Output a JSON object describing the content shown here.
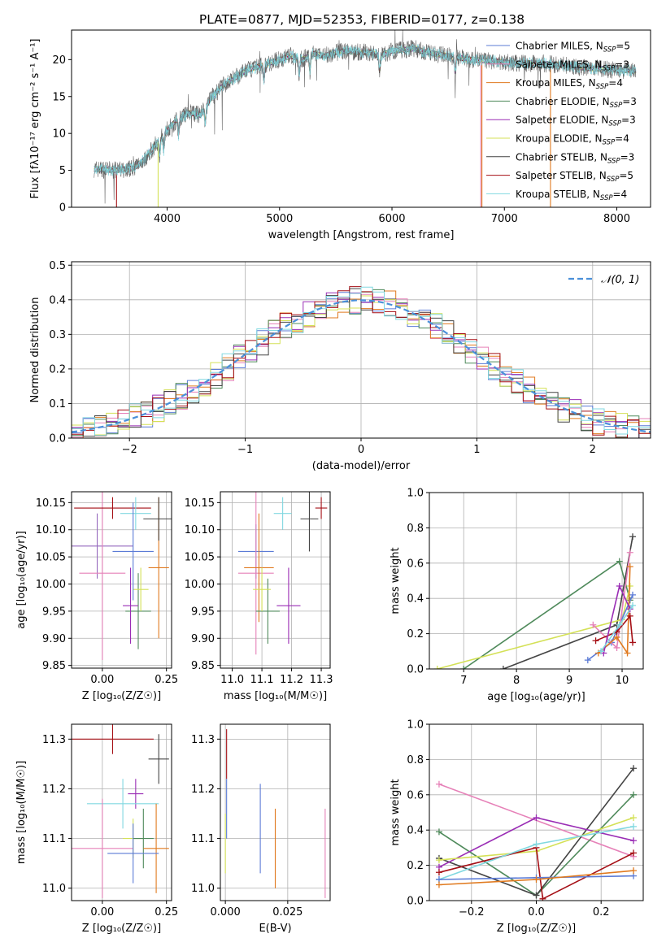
{
  "title": "PLATE=0877, MJD=52353, FIBERID=0177, z=0.138",
  "colors": [
    "#2ca02c",
    "#9467bd",
    "#bcbd22",
    "#4f8a5b",
    "#9a2db5",
    "#d4e157",
    "#444444",
    "#a50f15",
    "#80d8e0",
    "#5b7bd6",
    "#e07a1f",
    "#e681b8"
  ],
  "legend_entries": [
    {
      "label": "Chabrier MILES, N_SSP=5",
      "color": "#5b7bd6"
    },
    {
      "label": "Salpeter MILES, N_SSP=3",
      "color": "#e681b8"
    },
    {
      "label": "Kroupa MILES, N_SSP=4",
      "color": "#e07a1f"
    },
    {
      "label": "Chabrier ELODIE, N_SSP=3",
      "color": "#4f8a5b"
    },
    {
      "label": "Salpeter ELODIE, N_SSP=3",
      "color": "#9a2db5"
    },
    {
      "label": "Kroupa ELODIE, N_SSP=4",
      "color": "#d4e157"
    },
    {
      "label": "Chabrier STELIB, N_SSP=3",
      "color": "#444444"
    },
    {
      "label": "Salpeter STELIB, N_SSP=5",
      "color": "#a50f15"
    },
    {
      "label": "Kroupa STELIB, N_SSP=4",
      "color": "#80d8e0"
    }
  ],
  "chart_data": [
    {
      "id": "spectrum",
      "type": "line",
      "xlabel": "wavelength [Angstrom, rest frame]",
      "ylabel": "Flux [fλ10⁻¹⁷ erg cm⁻² s⁻¹ A⁻¹]",
      "xlim": [
        3150,
        8300
      ],
      "ylim": [
        0,
        24
      ],
      "xticks": [
        4000,
        5000,
        6000,
        7000,
        8000
      ],
      "yticks": [
        0,
        5,
        10,
        15,
        20
      ],
      "grid": false,
      "legend": "top-right",
      "continuum": [
        [
          3350,
          5.2
        ],
        [
          3550,
          5.0
        ],
        [
          3700,
          5.3
        ],
        [
          3800,
          6.5
        ],
        [
          3900,
          8.5
        ],
        [
          4000,
          10.5
        ],
        [
          4100,
          12.0
        ],
        [
          4200,
          12.8
        ],
        [
          4300,
          12.5
        ],
        [
          4400,
          15.0
        ],
        [
          4500,
          16.5
        ],
        [
          4600,
          17.5
        ],
        [
          4700,
          18.5
        ],
        [
          4800,
          19.0
        ],
        [
          4900,
          19.5
        ],
        [
          5000,
          20.0
        ],
        [
          5100,
          20.5
        ],
        [
          5200,
          20.0
        ],
        [
          5300,
          20.8
        ],
        [
          5400,
          20.5
        ],
        [
          5500,
          21.0
        ],
        [
          5600,
          21.2
        ],
        [
          5700,
          21.0
        ],
        [
          5800,
          21.0
        ],
        [
          5900,
          20.5
        ],
        [
          6000,
          21.2
        ],
        [
          6100,
          21.3
        ],
        [
          6200,
          21.5
        ],
        [
          6300,
          21.0
        ],
        [
          6500,
          20.5
        ],
        [
          6700,
          20.0
        ],
        [
          6900,
          19.8
        ],
        [
          7100,
          19.5
        ],
        [
          7300,
          19.5
        ],
        [
          7500,
          19.3
        ],
        [
          7700,
          18.9
        ],
        [
          8000,
          18.6
        ],
        [
          8170,
          18.5
        ]
      ],
      "model_drop_wavelengths": [
        3550,
        3920,
        6790,
        6800,
        7410
      ],
      "data_noise": 1.2
    },
    {
      "id": "residuals",
      "type": "bar",
      "xlabel": "(data-model)/error",
      "ylabel": "Normed distribution",
      "xlim": [
        -2.5,
        2.5
      ],
      "ylim": [
        0,
        0.51
      ],
      "xticks": [
        -2,
        -1,
        0,
        1,
        2
      ],
      "yticks": [
        0.0,
        0.1,
        0.2,
        0.3,
        0.4,
        0.5
      ],
      "grid": true,
      "legend": "top-right",
      "reference_label": "𝒩(0, 1)",
      "bin_width": 0.1
    },
    {
      "id": "age_vs_Z",
      "type": "scatter",
      "xlabel": "Z [log₁₀(Z/Z☉)]",
      "ylabel": "age  [log₁₀(age/yr)]",
      "xlim": [
        -0.12,
        0.27
      ],
      "ylim": [
        9.845,
        10.17
      ],
      "xticks": [
        0.0,
        0.25
      ],
      "yticks": [
        9.85,
        9.9,
        9.95,
        10.0,
        10.05,
        10.1,
        10.15
      ],
      "grid": true,
      "points": [
        {
          "c": 1,
          "x": -0.02,
          "y": 10.07,
          "xerr": 0.14,
          "yerr": 0.06
        },
        {
          "c": 11,
          "x": 0.0,
          "y": 10.02,
          "xerr": 0.09,
          "yerr": 0.16
        },
        {
          "c": 10,
          "x": 0.22,
          "y": 10.03,
          "xerr": 0.04,
          "yerr": 0.13
        },
        {
          "c": 3,
          "x": 0.14,
          "y": 9.95,
          "xerr": 0.05,
          "yerr": 0.07
        },
        {
          "c": 4,
          "x": 0.11,
          "y": 9.96,
          "xerr": 0.03,
          "yerr": 0.07
        },
        {
          "c": 5,
          "x": 0.15,
          "y": 9.99,
          "xerr": 0.03,
          "yerr": 0.04
        },
        {
          "c": 6,
          "x": 0.22,
          "y": 10.12,
          "xerr": 0.06,
          "yerr": 0.04
        },
        {
          "c": 7,
          "x": 0.04,
          "y": 10.14,
          "xerr": 0.15,
          "yerr": 0.02
        },
        {
          "c": 8,
          "x": 0.13,
          "y": 10.13,
          "xerr": 0.06,
          "yerr": 0.03
        },
        {
          "c": 9,
          "x": 0.12,
          "y": 10.06,
          "xerr": 0.08,
          "yerr": 0.09
        }
      ]
    },
    {
      "id": "age_vs_mass",
      "type": "scatter",
      "xlabel": "mass [log₁₀(M/M☉)]",
      "ylabel": "",
      "xlim": [
        10.96,
        11.33
      ],
      "ylim": [
        9.845,
        10.17
      ],
      "xticks": [
        11.0,
        11.1,
        11.2,
        11.3
      ],
      "yticks": [
        9.85,
        9.9,
        9.95,
        10.0,
        10.05,
        10.1,
        10.15
      ],
      "grid": true,
      "points": [
        {
          "c": 9,
          "x": 11.08,
          "y": 10.06,
          "xerr": 0.06,
          "yerr": 0.05
        },
        {
          "c": 11,
          "x": 11.08,
          "y": 10.02,
          "xerr": 0.06,
          "yerr": 0.15
        },
        {
          "c": 10,
          "x": 11.09,
          "y": 10.03,
          "xerr": 0.05,
          "yerr": 0.1
        },
        {
          "c": 3,
          "x": 11.12,
          "y": 9.95,
          "xerr": 0.04,
          "yerr": 0.06
        },
        {
          "c": 4,
          "x": 11.19,
          "y": 9.96,
          "xerr": 0.04,
          "yerr": 0.07
        },
        {
          "c": 5,
          "x": 11.1,
          "y": 9.99,
          "xerr": 0.03,
          "yerr": 0.04
        },
        {
          "c": 6,
          "x": 11.26,
          "y": 10.12,
          "xerr": 0.03,
          "yerr": 0.06
        },
        {
          "c": 7,
          "x": 11.3,
          "y": 10.14,
          "xerr": 0.02,
          "yerr": 0.02
        },
        {
          "c": 8,
          "x": 11.17,
          "y": 10.13,
          "xerr": 0.03,
          "yerr": 0.03
        }
      ]
    },
    {
      "id": "weight_vs_age",
      "type": "line",
      "xlabel": "age  [log₁₀(age/yr)]",
      "ylabel": "mass weight",
      "xlim": [
        6.35,
        10.4
      ],
      "ylim": [
        0,
        1.0
      ],
      "xticks": [
        7,
        8,
        9,
        10
      ],
      "yticks": [
        0.0,
        0.2,
        0.4,
        0.6,
        0.8,
        1.0
      ],
      "grid": true,
      "series": [
        {
          "c": 3,
          "x": [
            7.0,
            9.95,
            10.15
          ],
          "y": [
            0.0,
            0.61,
            0.39
          ]
        },
        {
          "c": 6,
          "x": 7.75,
          "xs": [
            7.75,
            9.9,
            10.2
          ],
          "ys": [
            0.0,
            0.25,
            0.75
          ]
        },
        {
          "c": 5,
          "x": [
            6.5,
            10.0,
            10.15
          ],
          "y": [
            0.0,
            0.28,
            0.47
          ]
        },
        {
          "c": 9,
          "x": [
            9.35,
            9.8,
            10.2
          ],
          "y": [
            0.05,
            0.15,
            0.42
          ]
        },
        {
          "c": 11,
          "x": [
            9.45,
            9.9,
            10.15
          ],
          "y": [
            0.25,
            0.12,
            0.66
          ]
        },
        {
          "c": 10,
          "x": [
            9.55,
            9.9,
            10.1,
            10.15
          ],
          "y": [
            0.09,
            0.18,
            0.09,
            0.58
          ]
        },
        {
          "c": 7,
          "x": [
            9.5,
            9.9,
            10.15,
            10.2
          ],
          "y": [
            0.16,
            0.21,
            0.3,
            0.15
          ]
        },
        {
          "c": 4,
          "x": [
            9.65,
            9.95,
            10.15
          ],
          "y": [
            0.09,
            0.47,
            0.34
          ]
        },
        {
          "c": 8,
          "x": [
            9.6,
            9.95,
            10.2
          ],
          "y": [
            0.1,
            0.25,
            0.36
          ]
        }
      ]
    },
    {
      "id": "mass_vs_Z",
      "type": "scatter",
      "xlabel": "Z [log₁₀(Z/Z☉)]",
      "ylabel": "mass [log₁₀(M/M☉)]",
      "xlim": [
        -0.12,
        0.27
      ],
      "ylim": [
        10.975,
        11.33
      ],
      "xticks": [
        0.0,
        0.25
      ],
      "yticks": [
        11.0,
        11.1,
        11.2,
        11.3
      ],
      "grid": true,
      "points": [
        {
          "c": 7,
          "x": 0.04,
          "y": 11.3,
          "xerr": 0.16,
          "yerr": 0.03
        },
        {
          "c": 6,
          "x": 0.22,
          "y": 11.26,
          "xerr": 0.04,
          "yerr": 0.05
        },
        {
          "c": 4,
          "x": 0.13,
          "y": 11.19,
          "xerr": 0.03,
          "yerr": 0.03
        },
        {
          "c": 8,
          "x": 0.08,
          "y": 11.17,
          "xerr": 0.14,
          "yerr": 0.05
        },
        {
          "c": 5,
          "x": 0.12,
          "y": 11.1,
          "xerr": 0.04,
          "yerr": 0.04
        },
        {
          "c": 3,
          "x": 0.16,
          "y": 11.1,
          "xerr": 0.04,
          "yerr": 0.06
        },
        {
          "c": 10,
          "x": 0.21,
          "y": 11.08,
          "xerr": 0.05,
          "yerr": 0.09
        },
        {
          "c": 11,
          "x": 0.0,
          "y": 11.08,
          "xerr": 0.12,
          "yerr": 0.1
        },
        {
          "c": 9,
          "x": 0.12,
          "y": 11.07,
          "xerr": 0.1,
          "yerr": 0.06
        }
      ]
    },
    {
      "id": "mass_vs_ebv",
      "type": "scatter",
      "xlabel": "E(B-V)",
      "ylabel": "",
      "xlim": [
        -0.002,
        0.042
      ],
      "ylim": [
        10.975,
        11.33
      ],
      "xticks": [
        0.0,
        0.025
      ],
      "yticks": [
        11.0,
        11.1,
        11.2,
        11.3
      ],
      "grid": true,
      "points": [
        {
          "c": 7,
          "x": 0.0005,
          "y": 11.27,
          "yerr": 0.05
        },
        {
          "c": 9,
          "x": 0.0005,
          "y": 11.16,
          "yerr": 0.06
        },
        {
          "c": 5,
          "x": 0.0,
          "y": 11.09,
          "yerr": 0.06
        },
        {
          "c": 9,
          "x": 0.014,
          "y": 11.12,
          "yerr": 0.09
        },
        {
          "c": 10,
          "x": 0.02,
          "y": 11.08,
          "yerr": 0.08
        },
        {
          "c": 11,
          "x": 0.04,
          "y": 11.07,
          "yerr": 0.09
        }
      ]
    },
    {
      "id": "weight_vs_Z",
      "type": "line",
      "xlabel": "Z [log₁₀(Z/Z☉)]",
      "ylabel": "mass weight",
      "xlim": [
        -0.33,
        0.33
      ],
      "ylim": [
        0,
        1.0
      ],
      "xticks": [
        -0.2,
        0.0,
        0.2
      ],
      "yticks": [
        0.0,
        0.2,
        0.4,
        0.6,
        0.8,
        1.0
      ],
      "grid": true,
      "series": [
        {
          "c": 11,
          "x": [
            -0.3,
            0.3
          ],
          "y": [
            0.66,
            0.25
          ]
        },
        {
          "c": 3,
          "x": [
            -0.3,
            0.0,
            0.3
          ],
          "y": [
            0.39,
            0.03,
            0.6
          ]
        },
        {
          "c": 6,
          "x": [
            -0.3,
            0.0,
            0.3
          ],
          "y": [
            0.24,
            0.03,
            0.75
          ]
        },
        {
          "c": 4,
          "x": [
            -0.3,
            0.0,
            0.3
          ],
          "y": [
            0.19,
            0.47,
            0.34
          ]
        },
        {
          "c": 5,
          "x": [
            -0.3,
            0.0,
            0.3
          ],
          "y": [
            0.23,
            0.28,
            0.47
          ]
        },
        {
          "c": 7,
          "x": [
            -0.3,
            0.0,
            0.02,
            0.3
          ],
          "y": [
            0.16,
            0.3,
            0.01,
            0.27
          ]
        },
        {
          "c": 8,
          "x": [
            -0.3,
            0.0,
            0.3
          ],
          "y": [
            0.12,
            0.32,
            0.42
          ]
        },
        {
          "c": 9,
          "x": [
            -0.3,
            0.0,
            0.3
          ],
          "y": [
            0.12,
            0.13,
            0.14
          ]
        },
        {
          "c": 10,
          "x": [
            -0.3,
            0.0,
            0.3
          ],
          "y": [
            0.09,
            0.12,
            0.17
          ]
        }
      ]
    }
  ]
}
